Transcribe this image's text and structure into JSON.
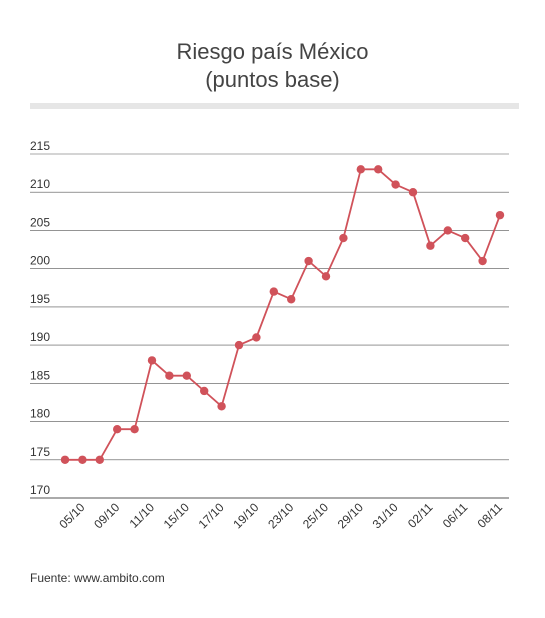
{
  "title_line1": "Riesgo país México",
  "title_line2": "(puntos base)",
  "source": "Fuente: www.ambito.com",
  "colors": {
    "series": "#d0525a",
    "grid": "#555555",
    "rule": "#e6e6e6",
    "text": "#333333"
  },
  "chart_data": {
    "type": "line",
    "title": "Riesgo país México (puntos base)",
    "ylim": [
      170,
      215
    ],
    "yticks": [
      170,
      175,
      180,
      185,
      190,
      195,
      200,
      205,
      210,
      215
    ],
    "grid": true,
    "x_tick_labels": [
      "05/10",
      "09/10",
      "11/10",
      "15/10",
      "17/10",
      "19/10",
      "23/10",
      "25/10",
      "29/10",
      "31/10",
      "02/11",
      "06/11",
      "08/11"
    ],
    "values": [
      175,
      175,
      175,
      179,
      179,
      188,
      186,
      186,
      184,
      182,
      190,
      191,
      197,
      196,
      201,
      199,
      204,
      213,
      213,
      211,
      210,
      203,
      205,
      204,
      201,
      207
    ]
  }
}
